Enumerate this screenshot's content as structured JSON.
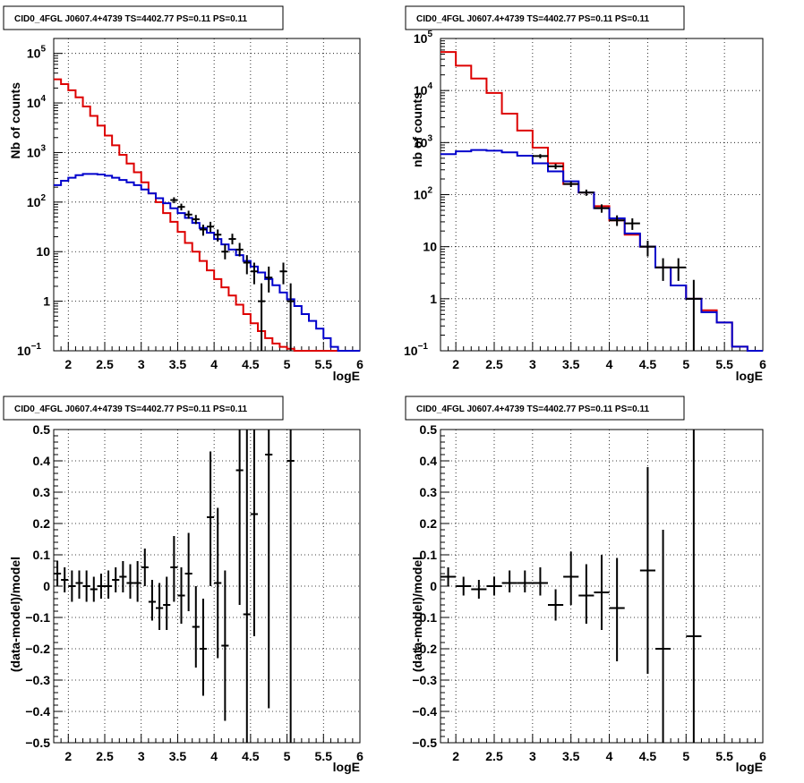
{
  "chart_data": [
    {
      "type": "line",
      "title": "CID0_4FGL J0607.4+4739 TS=4402.77 PS=0.11 PS=0.11",
      "xlabel": "logE",
      "ylabel": "Nb of counts",
      "log_y": true,
      "xlim": [
        1.8,
        6.0
      ],
      "ylim": [
        0.1,
        200000
      ],
      "x_ticks": [
        2,
        2.5,
        3,
        3.5,
        4,
        4.5,
        5,
        5.5,
        6
      ],
      "y_ticks": [
        {
          "v": 0.1,
          "b": "10",
          "e": "−1"
        },
        {
          "v": 1,
          "b": "1",
          "e": ""
        },
        {
          "v": 10,
          "b": "10",
          "e": ""
        },
        {
          "v": 100,
          "b": "10",
          "e": "2"
        },
        {
          "v": 1000,
          "b": "10",
          "e": "3"
        },
        {
          "v": 10000,
          "b": "10",
          "e": "4"
        },
        {
          "v": 100000,
          "b": "10",
          "e": "5"
        }
      ],
      "grid": true,
      "bin_edges": [
        1.8,
        1.9,
        2.0,
        2.1,
        2.2,
        2.3,
        2.4,
        2.5,
        2.6,
        2.7,
        2.8,
        2.9,
        3.0,
        3.1,
        3.2,
        3.3,
        3.4,
        3.5,
        3.6,
        3.7,
        3.8,
        3.9,
        4.0,
        4.1,
        4.2,
        4.3,
        4.4,
        4.5,
        4.6,
        4.7,
        4.8,
        4.9,
        5.0,
        5.1,
        5.2,
        5.3,
        5.4,
        5.5,
        5.6,
        5.7,
        5.8,
        5.9,
        6.0
      ],
      "series": [
        {
          "color": "#dd0000",
          "values": [
            30000,
            24000,
            18000,
            13000,
            8500,
            5500,
            3500,
            2200,
            1400,
            900,
            600,
            400,
            250,
            150,
            100,
            60,
            40,
            25,
            15,
            10,
            6.5,
            4.2,
            2.8,
            1.9,
            1.3,
            0.85,
            0.55,
            0.36,
            0.25,
            0.18,
            0.14,
            0.12,
            0.11,
            0.1,
            0.1,
            0.1,
            0.1,
            0.1,
            0.1,
            0.1,
            0.1,
            0.1
          ]
        },
        {
          "color": "#0000cc",
          "values": [
            220,
            270,
            310,
            350,
            370,
            370,
            360,
            340,
            310,
            280,
            250,
            220,
            180,
            150,
            120,
            95,
            75,
            60,
            48,
            38,
            30,
            24,
            18,
            14,
            11,
            8.5,
            6.5,
            5,
            3.8,
            2.8,
            2.1,
            1.5,
            1.1,
            0.8,
            0.55,
            0.4,
            0.28,
            0.18,
            0.12,
            0.1,
            0.1,
            0.1
          ]
        }
      ],
      "points": [
        {
          "x": 3.45,
          "y": 110,
          "xerr": 0.05,
          "ylo": 95,
          "yhi": 125
        },
        {
          "x": 3.55,
          "y": 80,
          "xerr": 0.05,
          "ylo": 68,
          "yhi": 93
        },
        {
          "x": 3.65,
          "y": 56,
          "xerr": 0.05,
          "ylo": 46,
          "yhi": 67
        },
        {
          "x": 3.75,
          "y": 45,
          "xerr": 0.05,
          "ylo": 36,
          "yhi": 55
        },
        {
          "x": 3.85,
          "y": 28,
          "xerr": 0.05,
          "ylo": 21,
          "yhi": 35
        },
        {
          "x": 3.95,
          "y": 32,
          "xerr": 0.05,
          "ylo": 25,
          "yhi": 40
        },
        {
          "x": 4.05,
          "y": 22,
          "xerr": 0.05,
          "ylo": 16,
          "yhi": 28
        },
        {
          "x": 4.15,
          "y": 10,
          "xerr": 0.05,
          "ylo": 7,
          "yhi": 14
        },
        {
          "x": 4.25,
          "y": 18,
          "xerr": 0.05,
          "ylo": 14,
          "yhi": 23
        },
        {
          "x": 4.35,
          "y": 11,
          "xerr": 0.05,
          "ylo": 8,
          "yhi": 15
        },
        {
          "x": 4.45,
          "y": 6,
          "xerr": 0.05,
          "ylo": 3.5,
          "yhi": 8.5
        },
        {
          "x": 4.55,
          "y": 4,
          "xerr": 0.05,
          "ylo": 2.2,
          "yhi": 6
        },
        {
          "x": 4.65,
          "y": 1,
          "xerr": 0.05,
          "ylo": 0.1,
          "yhi": 2.3
        },
        {
          "x": 4.75,
          "y": 3,
          "xerr": 0.05,
          "ylo": 1.5,
          "yhi": 5
        },
        {
          "x": 4.95,
          "y": 4,
          "xerr": 0.05,
          "ylo": 2.2,
          "yhi": 6
        },
        {
          "x": 5.05,
          "y": 1,
          "xerr": 0.05,
          "ylo": 0.1,
          "yhi": 2.3
        }
      ]
    },
    {
      "type": "line",
      "title": "CID0_4FGL J0607.4+4739 TS=4402.77 PS=0.11 PS=0.11",
      "xlabel": "logE",
      "ylabel": "nb of counts",
      "log_y": true,
      "xlim": [
        1.8,
        6.0
      ],
      "ylim": [
        0.1,
        100000
      ],
      "x_ticks": [
        2,
        2.5,
        3,
        3.5,
        4,
        4.5,
        5,
        5.5,
        6
      ],
      "y_ticks": [
        {
          "v": 0.1,
          "b": "10",
          "e": "−1"
        },
        {
          "v": 1,
          "b": "1",
          "e": ""
        },
        {
          "v": 10,
          "b": "10",
          "e": ""
        },
        {
          "v": 100,
          "b": "10",
          "e": "2"
        },
        {
          "v": 1000,
          "b": "10",
          "e": "3"
        },
        {
          "v": 10000,
          "b": "10",
          "e": "4"
        },
        {
          "v": 100000,
          "b": "10",
          "e": "5"
        }
      ],
      "grid": true,
      "bin_edges": [
        1.8,
        2.0,
        2.2,
        2.4,
        2.6,
        2.8,
        3.0,
        3.2,
        3.4,
        3.6,
        3.8,
        4.0,
        4.2,
        4.4,
        4.6,
        4.8,
        5.0,
        5.2,
        5.4,
        5.6,
        5.8,
        6.0
      ],
      "series": [
        {
          "color": "#dd0000",
          "values": [
            55000,
            30000,
            17000,
            9000,
            3600,
            1700,
            800,
            400,
            160,
            110,
            60,
            32,
            17,
            10,
            4,
            1.8,
            1,
            0.6,
            0.35,
            0.12,
            0.1
          ]
        },
        {
          "color": "#0000cc",
          "values": [
            600,
            680,
            720,
            700,
            650,
            560,
            400,
            280,
            180,
            110,
            55,
            35,
            18,
            10,
            4,
            1.8,
            1,
            0.55,
            0.35,
            0.12,
            0.1
          ]
        }
      ],
      "points": [
        {
          "x": 3.1,
          "y": 550,
          "xerr": 0.1,
          "ylo": 500,
          "yhi": 600
        },
        {
          "x": 3.3,
          "y": 350,
          "xerr": 0.1,
          "ylo": 310,
          "yhi": 390
        },
        {
          "x": 3.5,
          "y": 160,
          "xerr": 0.1,
          "ylo": 140,
          "yhi": 180
        },
        {
          "x": 3.7,
          "y": 110,
          "xerr": 0.1,
          "ylo": 95,
          "yhi": 125
        },
        {
          "x": 3.9,
          "y": 55,
          "xerr": 0.1,
          "ylo": 45,
          "yhi": 65
        },
        {
          "x": 4.1,
          "y": 32,
          "xerr": 0.1,
          "ylo": 25,
          "yhi": 40
        },
        {
          "x": 4.3,
          "y": 28,
          "xerr": 0.1,
          "ylo": 21,
          "yhi": 35
        },
        {
          "x": 4.5,
          "y": 10,
          "xerr": 0.1,
          "ylo": 6.5,
          "yhi": 13
        },
        {
          "x": 4.7,
          "y": 4,
          "xerr": 0.1,
          "ylo": 2.2,
          "yhi": 6
        },
        {
          "x": 4.9,
          "y": 4,
          "xerr": 0.1,
          "ylo": 2.2,
          "yhi": 6
        },
        {
          "x": 5.1,
          "y": 1,
          "xerr": 0.1,
          "ylo": 0.1,
          "yhi": 2.3
        }
      ]
    },
    {
      "type": "scatter",
      "title": "CID0_4FGL J0607.4+4739 TS=4402.77 PS=0.11 PS=0.11",
      "xlabel": "logE",
      "ylabel": "(data-model)/model",
      "log_y": false,
      "xlim": [
        1.8,
        6.0
      ],
      "ylim": [
        -0.5,
        0.5
      ],
      "x_ticks": [
        2,
        2.5,
        3,
        3.5,
        4,
        4.5,
        5,
        5.5,
        6
      ],
      "y_ticks": [
        -0.5,
        -0.4,
        -0.3,
        -0.2,
        -0.1,
        0,
        0.1,
        0.2,
        0.3,
        0.4,
        0.5
      ],
      "grid": true,
      "points": [
        {
          "x": 1.85,
          "y": 0.04,
          "xerr": 0.05,
          "ylo": 0.0,
          "yhi": 0.08
        },
        {
          "x": 1.95,
          "y": 0.02,
          "xerr": 0.05,
          "ylo": -0.02,
          "yhi": 0.06
        },
        {
          "x": 2.05,
          "y": 0.0,
          "xerr": 0.05,
          "ylo": -0.05,
          "yhi": 0.05
        },
        {
          "x": 2.15,
          "y": 0.01,
          "xerr": 0.05,
          "ylo": -0.04,
          "yhi": 0.05
        },
        {
          "x": 2.25,
          "y": 0.0,
          "xerr": 0.05,
          "ylo": -0.05,
          "yhi": 0.05
        },
        {
          "x": 2.35,
          "y": -0.01,
          "xerr": 0.05,
          "ylo": -0.05,
          "yhi": 0.03
        },
        {
          "x": 2.45,
          "y": 0.0,
          "xerr": 0.05,
          "ylo": -0.04,
          "yhi": 0.04
        },
        {
          "x": 2.55,
          "y": 0.0,
          "xerr": 0.05,
          "ylo": -0.04,
          "yhi": 0.05
        },
        {
          "x": 2.65,
          "y": 0.02,
          "xerr": 0.05,
          "ylo": -0.02,
          "yhi": 0.06
        },
        {
          "x": 2.75,
          "y": 0.03,
          "xerr": 0.05,
          "ylo": -0.02,
          "yhi": 0.08
        },
        {
          "x": 2.85,
          "y": 0.01,
          "xerr": 0.05,
          "ylo": -0.04,
          "yhi": 0.07
        },
        {
          "x": 2.95,
          "y": 0.01,
          "xerr": 0.05,
          "ylo": -0.05,
          "yhi": 0.08
        },
        {
          "x": 3.05,
          "y": 0.06,
          "xerr": 0.05,
          "ylo": 0.0,
          "yhi": 0.12
        },
        {
          "x": 3.15,
          "y": -0.05,
          "xerr": 0.05,
          "ylo": -0.11,
          "yhi": 0.02
        },
        {
          "x": 3.25,
          "y": -0.07,
          "xerr": 0.05,
          "ylo": -0.14,
          "yhi": 0.01
        },
        {
          "x": 3.35,
          "y": -0.06,
          "xerr": 0.05,
          "ylo": -0.14,
          "yhi": 0.03
        },
        {
          "x": 3.45,
          "y": 0.06,
          "xerr": 0.05,
          "ylo": -0.05,
          "yhi": 0.16
        },
        {
          "x": 3.55,
          "y": -0.03,
          "xerr": 0.05,
          "ylo": -0.12,
          "yhi": 0.06
        },
        {
          "x": 3.65,
          "y": 0.04,
          "xerr": 0.05,
          "ylo": -0.08,
          "yhi": 0.17
        },
        {
          "x": 3.75,
          "y": -0.13,
          "xerr": 0.05,
          "ylo": -0.26,
          "yhi": 0.0
        },
        {
          "x": 3.85,
          "y": -0.2,
          "xerr": 0.05,
          "ylo": -0.35,
          "yhi": -0.04
        },
        {
          "x": 3.95,
          "y": 0.22,
          "xerr": 0.05,
          "ylo": 0.0,
          "yhi": 0.43
        },
        {
          "x": 4.05,
          "y": 0.01,
          "xerr": 0.05,
          "ylo": -0.23,
          "yhi": 0.25
        },
        {
          "x": 4.15,
          "y": -0.19,
          "xerr": 0.05,
          "ylo": -0.43,
          "yhi": 0.05
        },
        {
          "x": 4.35,
          "y": 0.37,
          "xerr": 0.05,
          "ylo": -0.06,
          "yhi": 0.5
        },
        {
          "x": 4.45,
          "y": -0.09,
          "xerr": 0.05,
          "ylo": -0.5,
          "yhi": 0.5
        },
        {
          "x": 4.55,
          "y": 0.23,
          "xerr": 0.05,
          "ylo": -0.16,
          "yhi": 0.5
        },
        {
          "x": 4.75,
          "y": 0.42,
          "xerr": 0.05,
          "ylo": -0.39,
          "yhi": 0.5
        },
        {
          "x": 5.05,
          "y": 0.4,
          "xerr": 0.05,
          "ylo": -0.5,
          "yhi": 0.5
        }
      ]
    },
    {
      "type": "scatter",
      "title": "CID0_4FGL J0607.4+4739 TS=4402.77 PS=0.11 PS=0.11",
      "xlabel": "logE",
      "ylabel": "(data-model)/model",
      "log_y": false,
      "xlim": [
        1.8,
        6.0
      ],
      "ylim": [
        -0.5,
        0.5
      ],
      "x_ticks": [
        2,
        2.5,
        3,
        3.5,
        4,
        4.5,
        5,
        5.5,
        6
      ],
      "y_ticks": [
        -0.5,
        -0.4,
        -0.3,
        -0.2,
        -0.1,
        0,
        0.1,
        0.2,
        0.3,
        0.4,
        0.5
      ],
      "grid": true,
      "points": [
        {
          "x": 1.9,
          "y": 0.03,
          "xerr": 0.1,
          "ylo": 0.0,
          "yhi": 0.06
        },
        {
          "x": 2.1,
          "y": 0.0,
          "xerr": 0.1,
          "ylo": -0.03,
          "yhi": 0.03
        },
        {
          "x": 2.3,
          "y": -0.01,
          "xerr": 0.1,
          "ylo": -0.04,
          "yhi": 0.02
        },
        {
          "x": 2.5,
          "y": 0.0,
          "xerr": 0.1,
          "ylo": -0.03,
          "yhi": 0.03
        },
        {
          "x": 2.7,
          "y": 0.01,
          "xerr": 0.1,
          "ylo": -0.02,
          "yhi": 0.05
        },
        {
          "x": 2.9,
          "y": 0.01,
          "xerr": 0.1,
          "ylo": -0.02,
          "yhi": 0.05
        },
        {
          "x": 3.1,
          "y": 0.01,
          "xerr": 0.1,
          "ylo": -0.03,
          "yhi": 0.06
        },
        {
          "x": 3.3,
          "y": -0.06,
          "xerr": 0.1,
          "ylo": -0.11,
          "yhi": -0.01
        },
        {
          "x": 3.5,
          "y": 0.03,
          "xerr": 0.1,
          "ylo": -0.06,
          "yhi": 0.11
        },
        {
          "x": 3.7,
          "y": -0.03,
          "xerr": 0.1,
          "ylo": -0.12,
          "yhi": 0.07
        },
        {
          "x": 3.9,
          "y": -0.02,
          "xerr": 0.1,
          "ylo": -0.14,
          "yhi": 0.1
        },
        {
          "x": 4.1,
          "y": -0.07,
          "xerr": 0.1,
          "ylo": -0.24,
          "yhi": 0.09
        },
        {
          "x": 4.5,
          "y": 0.05,
          "xerr": 0.1,
          "ylo": -0.28,
          "yhi": 0.38
        },
        {
          "x": 4.7,
          "y": -0.2,
          "xerr": 0.1,
          "ylo": -0.5,
          "yhi": 0.18
        },
        {
          "x": 5.1,
          "y": -0.16,
          "xerr": 0.1,
          "ylo": -0.5,
          "yhi": 0.5
        }
      ]
    }
  ]
}
